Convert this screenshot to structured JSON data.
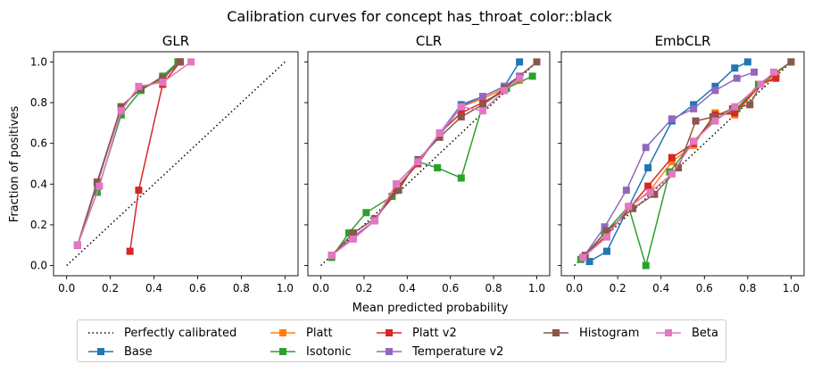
{
  "figure": {
    "suptitle": "Calibration curves for concept has_throat_color::black",
    "xlabel": "Mean predicted probability",
    "ylabel": "Fraction of positives"
  },
  "legend": {
    "reference_label": "Perfectly calibrated",
    "entries": [
      {
        "name": "Base",
        "color": "#1f77b4"
      },
      {
        "name": "Platt",
        "color": "#ff7f0e"
      },
      {
        "name": "Isotonic",
        "color": "#2ca02c"
      },
      {
        "name": "Platt v2",
        "color": "#d62728"
      },
      {
        "name": "Temperature v2",
        "color": "#9467bd"
      },
      {
        "name": "Histogram",
        "color": "#8c564b"
      },
      {
        "name": "Beta",
        "color": "#e377c2"
      }
    ]
  },
  "chart_data": [
    {
      "type": "line",
      "title": "GLR",
      "xlabel": "Mean predicted probability",
      "ylabel": "Fraction of positives",
      "xlim": [
        -0.06,
        1.06
      ],
      "ylim": [
        -0.05,
        1.05
      ],
      "xticks": [
        "0.0",
        "0.2",
        "0.4",
        "0.6",
        "0.8",
        "1.0"
      ],
      "yticks": [
        "0.0",
        "0.2",
        "0.4",
        "0.6",
        "0.8",
        "1.0"
      ],
      "reference": {
        "name": "Perfectly calibrated",
        "x": [
          0,
          1
        ],
        "y": [
          0,
          1
        ]
      },
      "series": [
        {
          "name": "Base",
          "color": "#1f77b4",
          "x": [
            0.05,
            0.14,
            0.25,
            0.34,
            0.44,
            0.51
          ],
          "y": [
            0.1,
            0.41,
            0.78,
            0.87,
            0.91,
            1.0
          ]
        },
        {
          "name": "Platt",
          "color": "#ff7f0e",
          "x": [
            0.05,
            0.14,
            0.25,
            0.34,
            0.44,
            0.51
          ],
          "y": [
            0.1,
            0.4,
            0.78,
            0.87,
            0.91,
            1.0
          ]
        },
        {
          "name": "Isotonic",
          "color": "#2ca02c",
          "x": [
            0.05,
            0.14,
            0.25,
            0.34,
            0.44,
            0.51
          ],
          "y": [
            0.1,
            0.36,
            0.74,
            0.86,
            0.93,
            1.0
          ]
        },
        {
          "name": "Platt v2",
          "color": "#d62728",
          "x": [
            0.29,
            0.33,
            0.44,
            0.52
          ],
          "y": [
            0.07,
            0.37,
            0.89,
            1.0
          ]
        },
        {
          "name": "Temperature v2",
          "color": "#9467bd",
          "x": [
            0.05,
            0.14,
            0.25,
            0.34,
            0.44,
            0.52
          ],
          "y": [
            0.1,
            0.4,
            0.78,
            0.87,
            0.92,
            1.0
          ]
        },
        {
          "name": "Histogram",
          "color": "#8c564b",
          "x": [
            0.05,
            0.14,
            0.25,
            0.34,
            0.44,
            0.52
          ],
          "y": [
            0.1,
            0.41,
            0.78,
            0.87,
            0.92,
            1.0
          ]
        },
        {
          "name": "Beta",
          "color": "#e377c2",
          "x": [
            0.05,
            0.15,
            0.25,
            0.33,
            0.44,
            0.57
          ],
          "y": [
            0.1,
            0.39,
            0.76,
            0.88,
            0.9,
            1.0
          ]
        }
      ]
    },
    {
      "type": "line",
      "title": "CLR",
      "xlabel": "Mean predicted probability",
      "ylabel": "Fraction of positives",
      "xlim": [
        -0.06,
        1.06
      ],
      "ylim": [
        -0.05,
        1.05
      ],
      "xticks": [
        "0.0",
        "0.2",
        "0.4",
        "0.6",
        "0.8",
        "1.0"
      ],
      "yticks": [],
      "reference": {
        "name": "Perfectly calibrated",
        "x": [
          0,
          1
        ],
        "y": [
          0,
          1
        ]
      },
      "series": [
        {
          "name": "Base",
          "color": "#1f77b4",
          "x": [
            0.05,
            0.15,
            0.25,
            0.35,
            0.45,
            0.55,
            0.65,
            0.75,
            0.85,
            0.92
          ],
          "y": [
            0.05,
            0.14,
            0.22,
            0.4,
            0.51,
            0.65,
            0.79,
            0.83,
            0.88,
            1.0
          ]
        },
        {
          "name": "Platt",
          "color": "#ff7f0e",
          "x": [
            0.05,
            0.15,
            0.25,
            0.35,
            0.45,
            0.55,
            0.65,
            0.75,
            0.85,
            0.92
          ],
          "y": [
            0.05,
            0.14,
            0.22,
            0.4,
            0.51,
            0.64,
            0.78,
            0.82,
            0.87,
            0.91
          ]
        },
        {
          "name": "Isotonic",
          "color": "#2ca02c",
          "x": [
            0.05,
            0.13,
            0.21,
            0.33,
            0.45,
            0.54,
            0.65,
            0.75,
            0.86,
            0.98
          ],
          "y": [
            0.04,
            0.16,
            0.26,
            0.34,
            0.51,
            0.48,
            0.43,
            0.79,
            0.87,
            0.93
          ]
        },
        {
          "name": "Platt v2",
          "color": "#d62728",
          "x": [
            0.05,
            0.15,
            0.25,
            0.35,
            0.45,
            0.55,
            0.65,
            0.75,
            0.85,
            0.92
          ],
          "y": [
            0.05,
            0.14,
            0.22,
            0.38,
            0.5,
            0.65,
            0.75,
            0.8,
            0.86,
            0.92
          ]
        },
        {
          "name": "Temperature v2",
          "color": "#9467bd",
          "x": [
            0.05,
            0.15,
            0.25,
            0.35,
            0.45,
            0.55,
            0.65,
            0.75,
            0.85,
            0.92
          ],
          "y": [
            0.05,
            0.14,
            0.22,
            0.4,
            0.51,
            0.64,
            0.78,
            0.83,
            0.88,
            0.93
          ]
        },
        {
          "name": "Histogram",
          "color": "#8c564b",
          "x": [
            0.05,
            0.15,
            0.25,
            0.36,
            0.45,
            0.55,
            0.65,
            0.75,
            0.85,
            1.0
          ],
          "y": [
            0.05,
            0.16,
            0.23,
            0.37,
            0.52,
            0.63,
            0.73,
            0.79,
            0.87,
            1.0
          ]
        },
        {
          "name": "Beta",
          "color": "#e377c2",
          "x": [
            0.05,
            0.15,
            0.25,
            0.35,
            0.45,
            0.55,
            0.65,
            0.75,
            0.85,
            0.92
          ],
          "y": [
            0.05,
            0.13,
            0.22,
            0.4,
            0.51,
            0.65,
            0.78,
            0.76,
            0.86,
            0.92
          ]
        }
      ]
    },
    {
      "type": "line",
      "title": "EmbCLR",
      "xlabel": "Mean predicted probability",
      "ylabel": "Fraction of positives",
      "xlim": [
        -0.06,
        1.06
      ],
      "ylim": [
        -0.05,
        1.05
      ],
      "xticks": [
        "0.0",
        "0.2",
        "0.4",
        "0.6",
        "0.8",
        "1.0"
      ],
      "yticks": [],
      "reference": {
        "name": "Perfectly calibrated",
        "x": [
          0,
          1
        ],
        "y": [
          0,
          1
        ]
      },
      "series": [
        {
          "name": "Base",
          "color": "#1f77b4",
          "x": [
            0.07,
            0.15,
            0.34,
            0.45,
            0.55,
            0.65,
            0.74,
            0.8
          ],
          "y": [
            0.02,
            0.07,
            0.48,
            0.71,
            0.79,
            0.88,
            0.97,
            1.0
          ]
        },
        {
          "name": "Platt",
          "color": "#ff7f0e",
          "x": [
            0.04,
            0.15,
            0.26,
            0.35,
            0.45,
            0.55,
            0.65,
            0.74,
            0.86,
            0.93
          ],
          "y": [
            0.04,
            0.15,
            0.29,
            0.37,
            0.51,
            0.59,
            0.75,
            0.74,
            0.89,
            0.93
          ]
        },
        {
          "name": "Isotonic",
          "color": "#2ca02c",
          "x": [
            0.03,
            0.14,
            0.25,
            0.33,
            0.44,
            0.55,
            0.65,
            0.75,
            0.85,
            1.0
          ],
          "y": [
            0.03,
            0.16,
            0.29,
            0.0,
            0.46,
            0.61,
            0.72,
            0.77,
            0.89,
            1.0
          ]
        },
        {
          "name": "Platt v2",
          "color": "#d62728",
          "x": [
            0.04,
            0.15,
            0.26,
            0.34,
            0.45,
            0.55,
            0.65,
            0.74,
            0.86,
            0.93
          ],
          "y": [
            0.04,
            0.15,
            0.29,
            0.39,
            0.53,
            0.6,
            0.74,
            0.75,
            0.89,
            0.92
          ]
        },
        {
          "name": "Temperature v2",
          "color": "#9467bd",
          "x": [
            0.04,
            0.14,
            0.24,
            0.33,
            0.45,
            0.55,
            0.65,
            0.75,
            0.83
          ],
          "y": [
            0.04,
            0.19,
            0.37,
            0.58,
            0.72,
            0.77,
            0.86,
            0.92,
            0.95
          ]
        },
        {
          "name": "Histogram",
          "color": "#8c564b",
          "x": [
            0.05,
            0.15,
            0.27,
            0.37,
            0.48,
            0.56,
            0.64,
            0.73,
            0.81,
            0.86,
            1.0
          ],
          "y": [
            0.05,
            0.17,
            0.28,
            0.35,
            0.48,
            0.71,
            0.73,
            0.77,
            0.79,
            0.89,
            1.0
          ]
        },
        {
          "name": "Beta",
          "color": "#e377c2",
          "x": [
            0.04,
            0.15,
            0.25,
            0.35,
            0.45,
            0.55,
            0.65,
            0.74,
            0.86,
            0.92
          ],
          "y": [
            0.04,
            0.14,
            0.29,
            0.36,
            0.45,
            0.61,
            0.71,
            0.78,
            0.89,
            0.95
          ]
        }
      ]
    }
  ]
}
